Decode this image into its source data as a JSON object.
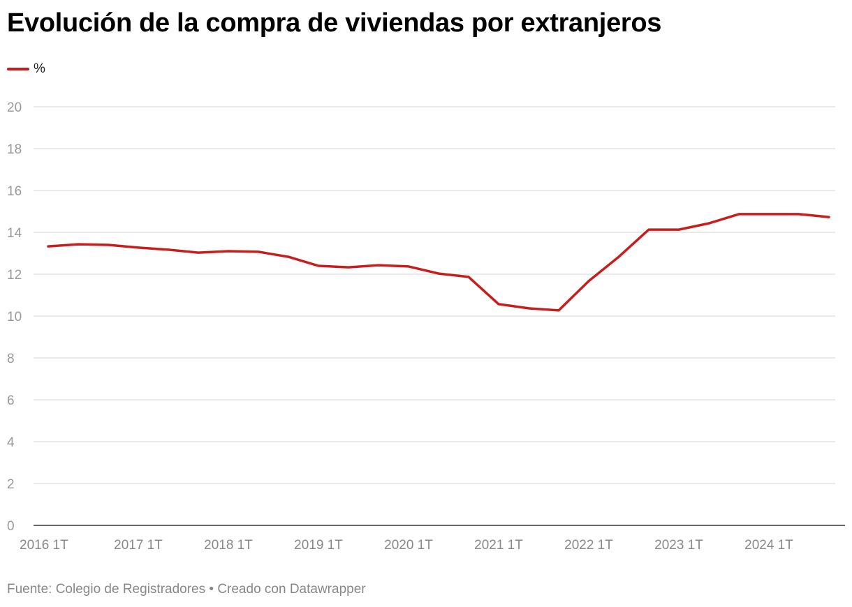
{
  "chart_data": {
    "type": "line",
    "title": "Evolución de la compra de viviendas por extranjeros",
    "xlabel": "",
    "ylabel": "",
    "ylim": [
      0,
      20
    ],
    "yticks": [
      0,
      2,
      4,
      6,
      8,
      10,
      12,
      14,
      16,
      18,
      20
    ],
    "grid": true,
    "legend_position": "top-left",
    "x": [
      "2016 1T",
      "2016 2T",
      "2016 3T",
      "2017 1T",
      "2017 2T",
      "2017 3T",
      "2018 1T",
      "2018 2T",
      "2018 3T",
      "2019 1T",
      "2019 2T",
      "2019 3T",
      "2020 1T",
      "2020 2T",
      "2020 3T",
      "2021 1T",
      "2021 2T",
      "2021 3T",
      "2022 1T",
      "2022 2T",
      "2022 3T",
      "2023 1T",
      "2023 2T",
      "2023 3T",
      "2024 1T",
      "2024 2T",
      "2024 3T"
    ],
    "xtick_labels": [
      "2016 1T",
      "2017 1T",
      "2018 1T",
      "2019 1T",
      "2020 1T",
      "2021 1T",
      "2022 1T",
      "2023 1T",
      "2024 1T"
    ],
    "series": [
      {
        "name": "%",
        "color": "#c71e1d",
        "values": [
          13.33,
          13.43,
          13.4,
          13.27,
          13.17,
          13.03,
          13.1,
          13.07,
          12.83,
          12.4,
          12.33,
          12.43,
          12.37,
          12.03,
          11.87,
          10.57,
          10.37,
          10.27,
          11.67,
          12.83,
          14.13,
          14.13,
          14.43,
          14.87,
          14.87,
          14.87,
          14.73
        ]
      }
    ]
  },
  "footer": {
    "source": "Fuente: Colegio de Registradores • Creado con Datawrapper"
  }
}
